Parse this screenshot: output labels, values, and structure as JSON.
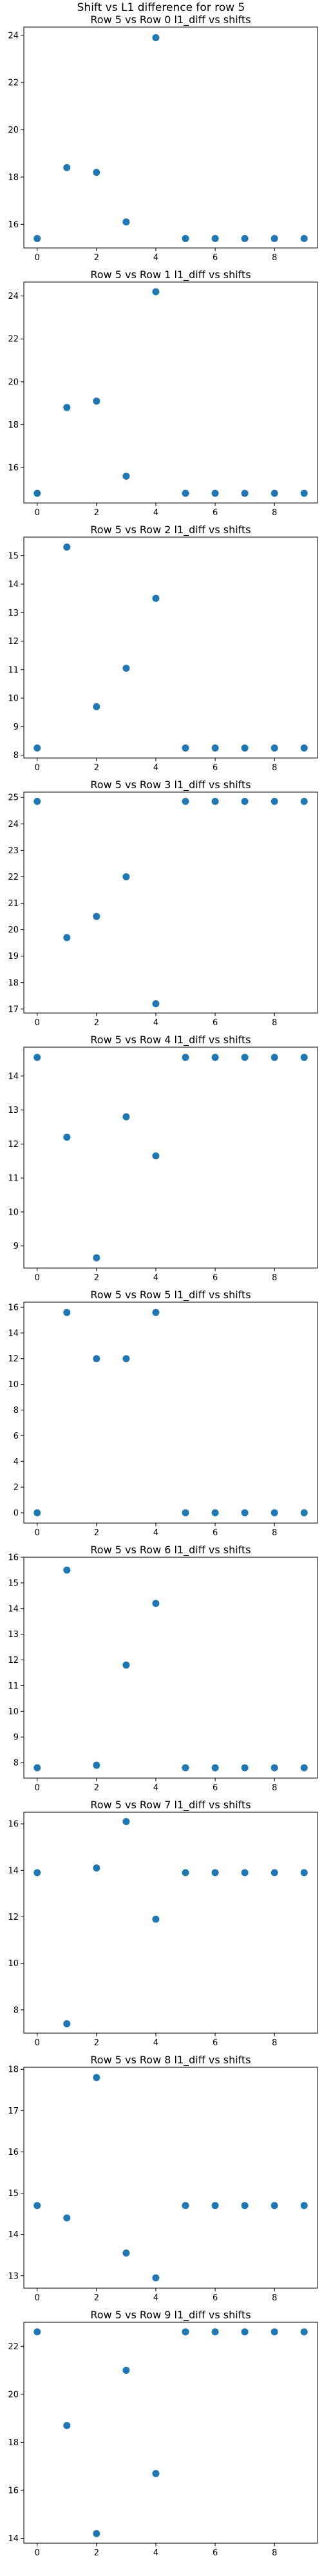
{
  "suptitle": "Shift vs L1 difference for row 5",
  "colors": {
    "marker": "#1f77b4",
    "axes": "#000000",
    "text": "#000000"
  },
  "chart_data": [
    {
      "type": "scatter",
      "title": "Row 5 vs Row 0 l1_diff vs shifts",
      "x": [
        0,
        1,
        2,
        3,
        4,
        5,
        6,
        7,
        8,
        9
      ],
      "y": [
        15.4,
        18.4,
        18.2,
        16.1,
        23.9,
        15.4,
        15.4,
        15.4,
        15.4,
        15.4
      ],
      "xlim": [
        -0.45,
        9.45
      ],
      "ylim": [
        15.0,
        24.35
      ],
      "xticks": [
        0,
        2,
        4,
        6,
        8
      ],
      "yticks": [
        16,
        18,
        20,
        22,
        24
      ],
      "grid": false,
      "legend": "none"
    },
    {
      "type": "scatter",
      "title": "Row 5 vs Row 1 l1_diff vs shifts",
      "x": [
        0,
        1,
        2,
        3,
        4,
        5,
        6,
        7,
        8,
        9
      ],
      "y": [
        14.8,
        18.8,
        19.1,
        15.6,
        24.2,
        14.8,
        14.8,
        14.8,
        14.8,
        14.8
      ],
      "xlim": [
        -0.45,
        9.45
      ],
      "ylim": [
        14.35,
        24.65
      ],
      "xticks": [
        0,
        2,
        4,
        6,
        8
      ],
      "yticks": [
        16,
        18,
        20,
        22,
        24
      ],
      "grid": false,
      "legend": "none"
    },
    {
      "type": "scatter",
      "title": "Row 5 vs Row 2 l1_diff vs shifts",
      "x": [
        0,
        1,
        2,
        3,
        4,
        5,
        6,
        7,
        8,
        9
      ],
      "y": [
        8.25,
        15.3,
        9.7,
        11.05,
        13.5,
        8.25,
        8.25,
        8.25,
        8.25,
        8.25
      ],
      "xlim": [
        -0.45,
        9.45
      ],
      "ylim": [
        7.9,
        15.65
      ],
      "xticks": [
        0,
        2,
        4,
        6,
        8
      ],
      "yticks": [
        8,
        9,
        10,
        11,
        12,
        13,
        14,
        15
      ],
      "grid": false,
      "legend": "none"
    },
    {
      "type": "scatter",
      "title": "Row 5 vs Row 3 l1_diff vs shifts",
      "x": [
        0,
        1,
        2,
        3,
        4,
        5,
        6,
        7,
        8,
        9
      ],
      "y": [
        24.85,
        19.7,
        20.5,
        22.0,
        17.2,
        24.85,
        24.85,
        24.85,
        24.85,
        24.85
      ],
      "xlim": [
        -0.45,
        9.45
      ],
      "ylim": [
        16.85,
        25.2
      ],
      "xticks": [
        0,
        2,
        4,
        6,
        8
      ],
      "yticks": [
        17,
        18,
        19,
        20,
        21,
        22,
        23,
        24,
        25
      ],
      "grid": false,
      "legend": "none"
    },
    {
      "type": "scatter",
      "title": "Row 5 vs Row 4 l1_diff vs shifts",
      "x": [
        0,
        1,
        2,
        3,
        4,
        5,
        6,
        7,
        8,
        9
      ],
      "y": [
        14.55,
        12.2,
        8.65,
        12.8,
        11.65,
        14.55,
        14.55,
        14.55,
        14.55,
        14.55
      ],
      "xlim": [
        -0.45,
        9.45
      ],
      "ylim": [
        8.35,
        14.85
      ],
      "xticks": [
        0,
        2,
        4,
        6,
        8
      ],
      "yticks": [
        9,
        10,
        11,
        12,
        13,
        14
      ],
      "grid": false,
      "legend": "none"
    },
    {
      "type": "scatter",
      "title": "Row 5 vs Row 5 l1_diff vs shifts",
      "x": [
        0,
        1,
        2,
        3,
        4,
        5,
        6,
        7,
        8,
        9
      ],
      "y": [
        0,
        15.6,
        12.0,
        12.0,
        15.6,
        0,
        0,
        0,
        0,
        0
      ],
      "xlim": [
        -0.45,
        9.45
      ],
      "ylim": [
        -0.8,
        16.4
      ],
      "xticks": [
        0,
        2,
        4,
        6,
        8
      ],
      "yticks": [
        0,
        2,
        4,
        6,
        8,
        10,
        12,
        14,
        16
      ],
      "grid": false,
      "legend": "none"
    },
    {
      "type": "scatter",
      "title": "Row 5 vs Row 6 l1_diff vs shifts",
      "x": [
        0,
        1,
        2,
        3,
        4,
        5,
        6,
        7,
        8,
        9
      ],
      "y": [
        7.8,
        15.5,
        7.9,
        11.8,
        14.2,
        7.8,
        7.8,
        7.8,
        7.8,
        7.8
      ],
      "xlim": [
        -0.45,
        9.45
      ],
      "ylim": [
        7.4,
        16.0
      ],
      "xticks": [
        0,
        2,
        4,
        6,
        8
      ],
      "yticks": [
        8,
        9,
        10,
        11,
        12,
        13,
        14,
        15,
        16
      ],
      "grid": false,
      "legend": "none"
    },
    {
      "type": "scatter",
      "title": "Row 5 vs Row 7 l1_diff vs shifts",
      "x": [
        0,
        1,
        2,
        3,
        4,
        5,
        6,
        7,
        8,
        9
      ],
      "y": [
        13.9,
        7.4,
        14.1,
        16.1,
        11.9,
        13.9,
        13.9,
        13.9,
        13.9,
        13.9
      ],
      "xlim": [
        -0.45,
        9.45
      ],
      "ylim": [
        7.0,
        16.5
      ],
      "xticks": [
        0,
        2,
        4,
        6,
        8
      ],
      "yticks": [
        8,
        10,
        12,
        14,
        16
      ],
      "grid": false,
      "legend": "none"
    },
    {
      "type": "scatter",
      "title": "Row 5 vs Row 8 l1_diff vs shifts",
      "x": [
        0,
        1,
        2,
        3,
        4,
        5,
        6,
        7,
        8,
        9
      ],
      "y": [
        14.7,
        14.4,
        17.8,
        13.55,
        12.95,
        14.7,
        14.7,
        14.7,
        14.7,
        14.7
      ],
      "xlim": [
        -0.45,
        9.45
      ],
      "ylim": [
        12.7,
        18.05
      ],
      "xticks": [
        0,
        2,
        4,
        6,
        8
      ],
      "yticks": [
        13,
        14,
        15,
        16,
        17,
        18
      ],
      "grid": false,
      "legend": "none"
    },
    {
      "type": "scatter",
      "title": "Row 5 vs Row 9 l1_diff vs shifts",
      "x": [
        0,
        1,
        2,
        3,
        4,
        5,
        6,
        7,
        8,
        9
      ],
      "y": [
        22.6,
        18.7,
        14.2,
        21.0,
        16.7,
        22.6,
        22.6,
        22.6,
        22.6,
        22.6
      ],
      "xlim": [
        -0.45,
        9.45
      ],
      "ylim": [
        13.8,
        23.0
      ],
      "xticks": [
        0,
        2,
        4,
        6,
        8
      ],
      "yticks": [
        14,
        16,
        18,
        20,
        22
      ],
      "grid": false,
      "legend": "none"
    }
  ]
}
